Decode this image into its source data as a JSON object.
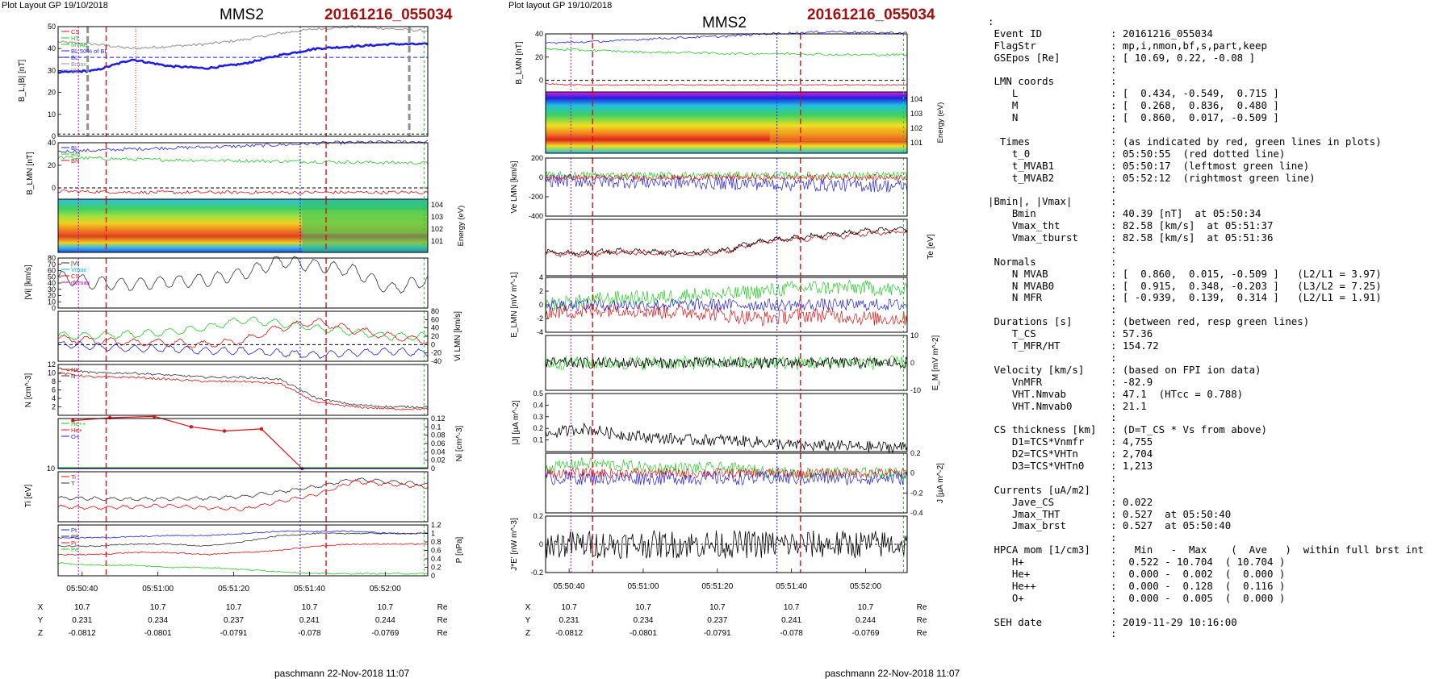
{
  "left_figure": {
    "header": "Plot Layout GP 19/10/2018",
    "spacecraft": "MMS2",
    "event": "20161216_055034",
    "footer": "paschmann 22-Nov-2018 11:07"
  },
  "right_figure": {
    "header": "Plot layout GP 19/10/2018",
    "spacecraft": "MMS2",
    "event": "20161216_055034",
    "footer": "paschmann 22-Nov-2018 11:07"
  },
  "time_ticks": [
    "05:50:40",
    "05:51:00",
    "05:51:20",
    "05:51:40",
    "05:52:00"
  ],
  "position_table": {
    "rows": [
      {
        "label": "X",
        "values": [
          "10.7",
          "10.7",
          "10.7",
          "10.7",
          "10.7"
        ],
        "unit": "Re"
      },
      {
        "label": "Y",
        "values": [
          "0.231",
          "0.234",
          "0.237",
          "0.241",
          "0.244"
        ],
        "unit": "Re"
      },
      {
        "label": "Z",
        "values": [
          "-0.0812",
          "-0.0801",
          "-0.0791",
          "-0.078",
          "-0.0769"
        ],
        "unit": "Re"
      }
    ]
  },
  "colors": {
    "blue": "#1f1fe0",
    "green": "#22cc22",
    "red": "#e01010",
    "black": "#000000",
    "gray": "#909090",
    "magenta": "#c000c0",
    "cyan": "#00b0e0",
    "event": "#a01010"
  },
  "chart_data": [
    {
      "type": "line",
      "figure": "left",
      "panel": "B",
      "ylabel": "B_L,|B| [nT]",
      "ylim": [
        0,
        50
      ],
      "yticks": [
        0,
        10,
        20,
        30,
        40,
        50
      ],
      "legend": [
        "CS",
        "HT",
        "MVAB",
        "BL 50% of BL",
        "BL",
        "Bmax",
        "|B|"
      ],
      "series": [
        {
          "name": "|B|",
          "color": "gray",
          "x": [
            0,
            0.1,
            0.2,
            0.3,
            0.4,
            0.5,
            0.6,
            0.7,
            0.8,
            0.9,
            1
          ],
          "y": [
            43,
            42,
            40,
            41,
            42,
            44,
            47,
            49,
            50,
            49,
            48
          ]
        },
        {
          "name": "BL",
          "color": "blue",
          "x": [
            0,
            0.1,
            0.2,
            0.3,
            0.4,
            0.5,
            0.6,
            0.7,
            0.8,
            0.9,
            1
          ],
          "y": [
            29,
            30,
            35,
            32,
            31,
            33,
            37,
            40,
            41,
            42,
            42
          ]
        }
      ]
    },
    {
      "type": "line",
      "figure": "left",
      "panel": "BLMN",
      "ylabel": "B_LMN [nT]",
      "ylim": [
        -10,
        40
      ],
      "yticks": [
        0,
        20,
        40
      ],
      "legend": [
        "BL",
        "BM",
        "BN"
      ],
      "series": [
        {
          "name": "BL",
          "color": "blue",
          "x": [
            0,
            0.25,
            0.5,
            0.75,
            1
          ],
          "y": [
            32,
            35,
            37,
            40,
            41
          ]
        },
        {
          "name": "BM",
          "color": "green",
          "x": [
            0,
            0.25,
            0.5,
            0.75,
            1
          ],
          "y": [
            27,
            25,
            24,
            23,
            22
          ]
        },
        {
          "name": "BN",
          "color": "red",
          "x": [
            0,
            0.25,
            0.5,
            0.75,
            1
          ],
          "y": [
            -3,
            -4,
            -4,
            -4,
            -4
          ]
        }
      ]
    },
    {
      "type": "heatmap",
      "figure": "left",
      "panel": "ion-spectrogram",
      "ylabel": "Energy (eV)",
      "yticks": [
        "10^1",
        "10^2",
        "10^3",
        "10^4"
      ]
    },
    {
      "type": "line",
      "figure": "left",
      "panel": "Vi",
      "ylabel": "|Vi| [km/s]",
      "ylim": [
        0,
        80
      ],
      "yticks": [
        0,
        10,
        20,
        30,
        40,
        50,
        60,
        70,
        80
      ],
      "legend": [
        "|Vi|",
        "Vmax",
        "CS",
        "dVmax"
      ]
    },
    {
      "type": "line",
      "figure": "left",
      "panel": "ViLMN",
      "ylabel": "Vi LMN [km/s]",
      "ylim": [
        -40,
        80
      ],
      "yticks": [
        -40,
        -20,
        0,
        20,
        40,
        60,
        80
      ],
      "legend": [
        "VL",
        "VM",
        "VN"
      ]
    },
    {
      "type": "line",
      "figure": "left",
      "panel": "N",
      "ylabel": "N [cm^-3]",
      "ylim": [
        0,
        12
      ],
      "yticks": [
        2,
        4,
        6,
        8,
        10,
        12
      ],
      "legend": [
        "Ne",
        "N"
      ]
    },
    {
      "type": "line",
      "figure": "left",
      "panel": "HPCA",
      "ylabel": "Ni [cm^-3]",
      "ylim": [
        0,
        0.12
      ],
      "yticks": [
        0,
        0.02,
        0.04,
        0.06,
        0.08,
        0.1,
        0.12
      ],
      "legend": [
        "He++",
        "He+",
        "O+"
      ],
      "series": [
        {
          "name": "He++",
          "color": "red",
          "x": [
            0.04,
            0.14,
            0.26,
            0.36,
            0.45,
            0.55,
            0.66
          ],
          "y": [
            0.115,
            0.122,
            0.125,
            0.1,
            0.09,
            0.095,
            0.0
          ]
        }
      ]
    },
    {
      "type": "line",
      "figure": "left",
      "panel": "Ti",
      "ylabel": "Ti [eV]",
      "legend": [
        "Ti",
        "T"
      ]
    },
    {
      "type": "line",
      "figure": "left",
      "panel": "P",
      "ylabel": "P [nPa]",
      "ylim": [
        0,
        1.2
      ],
      "yticks": [
        0,
        0.2,
        0.4,
        0.6,
        0.8,
        1.0,
        1.2
      ],
      "legend": [
        "Pt",
        "PB",
        "Pi",
        "Pe"
      ]
    },
    {
      "type": "line",
      "figure": "right",
      "panel": "BLMN",
      "ylabel": "B_LMN [nT]",
      "ylim": [
        -10,
        40
      ],
      "yticks": [
        0,
        20,
        40
      ],
      "legend": [
        "BL",
        "BM",
        "BN"
      ]
    },
    {
      "type": "heatmap",
      "figure": "right",
      "panel": "electron-spectrogram",
      "ylabel": "Energy (eV)",
      "yticks": [
        "10^1",
        "10^2",
        "10^3",
        "10^4"
      ]
    },
    {
      "type": "line",
      "figure": "right",
      "panel": "VeLMN",
      "ylabel": "Ve LMN [km/s]",
      "ylim": [
        -400,
        200
      ],
      "yticks": [
        -400,
        -200,
        0,
        200
      ],
      "legend": [
        "VL",
        "VM",
        "VN"
      ]
    },
    {
      "type": "line",
      "figure": "right",
      "panel": "Te",
      "ylabel": "Te [eV]",
      "legend": [
        "T",
        "Tpar"
      ]
    },
    {
      "type": "line",
      "figure": "right",
      "panel": "ELMN",
      "ylabel": "E_LMN [mV m^-1]",
      "ylim": [
        -4,
        4
      ],
      "yticks": [
        -4,
        -2,
        0,
        2,
        4
      ],
      "legend": [
        "EL",
        "EM",
        "EN"
      ]
    },
    {
      "type": "line",
      "figure": "right",
      "panel": "EM",
      "ylabel": "E_M [mV m^-2]",
      "ylim": [
        -10,
        10
      ],
      "yticks": [
        -10,
        0,
        10
      ],
      "legend": [
        "-VexB",
        "E"
      ]
    },
    {
      "type": "line",
      "figure": "right",
      "panel": "J",
      "ylabel": "|J| [µA m^-2]",
      "ylim": [
        0,
        0.5
      ],
      "yticks": [
        0.1,
        0.2,
        0.3,
        0.4,
        0.5
      ],
      "legend": [
        "|J|"
      ]
    },
    {
      "type": "line",
      "figure": "right",
      "panel": "JLMN",
      "ylabel": "J [µA m^-2]",
      "ylim": [
        -0.4,
        0.2
      ],
      "yticks": [
        -0.4,
        -0.2,
        0.0,
        0.2
      ],
      "legend": [
        "Jmax"
      ]
    },
    {
      "type": "line",
      "figure": "right",
      "panel": "JE",
      "ylabel": "J*E' [nW m^-3]",
      "ylim": [
        -0.2,
        0.2
      ],
      "yticks": [
        -0.2,
        0.0,
        0.2
      ],
      "legend": [
        "J*E'"
      ]
    }
  ],
  "info_lines": [
    {
      "k": ":",
      "v": ""
    },
    {
      "k": " Event ID",
      "v": ": 20161216_055034"
    },
    {
      "k": " FlagStr",
      "v": ": mp,i,nmon,bf,s,part,keep"
    },
    {
      "k": " GSEpos [Re]",
      "v": ": [ 10.69, 0.22, -0.08 ]"
    },
    {
      "k": "",
      "v": ":"
    },
    {
      "k": " LMN coords",
      "v": ":"
    },
    {
      "k": "    L",
      "v": ": [  0.434, -0.549,  0.715 ]"
    },
    {
      "k": "    M",
      "v": ": [  0.268,  0.836,  0.480 ]"
    },
    {
      "k": "    N",
      "v": ": [  0.860,  0.017, -0.509 ]"
    },
    {
      "k": "",
      "v": ":"
    },
    {
      "k": "  Times",
      "v": ": (as indicated by red, green lines in plots)"
    },
    {
      "k": "    t_0",
      "v": ": 05:50:55  (red dotted line)"
    },
    {
      "k": "    t_MVAB1",
      "v": ": 05:50:17  (leftmost green line)"
    },
    {
      "k": "    t_MVAB2",
      "v": ": 05:52:12  (rightmost green line)"
    },
    {
      "k": "",
      "v": ":"
    },
    {
      "k": "|Bmin|, |Vmax|",
      "v": ":"
    },
    {
      "k": "    Bmin",
      "v": ": 40.39 [nT]  at 05:50:34"
    },
    {
      "k": "    Vmax_tht",
      "v": ": 82.58 [km/s]  at 05:51:37"
    },
    {
      "k": "    Vmax_tburst",
      "v": ": 82.58 [km/s]  at 05:51:36"
    },
    {
      "k": "",
      "v": ":"
    },
    {
      "k": " Normals",
      "v": ":"
    },
    {
      "k": "    N MVAB",
      "v": ": [  0.860,  0.015, -0.509 ]   (L2/L1 = 3.97)"
    },
    {
      "k": "    N MVAB0",
      "v": ": [  0.915,  0.348, -0.203 ]   (L3/L2 = 7.25)"
    },
    {
      "k": "    N MFR",
      "v": ": [ -0.939,  0.139,  0.314 ]   (L2/L1 = 1.91)"
    },
    {
      "k": "",
      "v": ":"
    },
    {
      "k": " Durations [s]",
      "v": ": (between red, resp green lines)"
    },
    {
      "k": "    T_CS",
      "v": ": 57.36"
    },
    {
      "k": "    T_MFR/HT",
      "v": ": 154.72"
    },
    {
      "k": "",
      "v": ":"
    },
    {
      "k": " Velocity [km/s]",
      "v": ": (based on FPI ion data)"
    },
    {
      "k": "    VnMFR",
      "v": ": -82.9"
    },
    {
      "k": "    VHT.Nmvab",
      "v": ": 47.1  (HTcc = 0.788)"
    },
    {
      "k": "    VHT.Nmvab0",
      "v": ": 21.1"
    },
    {
      "k": "",
      "v": ":"
    },
    {
      "k": " CS thickness [km]",
      "v": ": (D=T_CS * Vs from above)"
    },
    {
      "k": "    D1=TCS*Vnmfr",
      "v": ": 4,755"
    },
    {
      "k": "    D2=TCS*VHTn",
      "v": ": 2,704"
    },
    {
      "k": "    D3=TCS*VHTn0",
      "v": ": 1,213"
    },
    {
      "k": "",
      "v": ":"
    },
    {
      "k": " Currents [uA/m2]",
      "v": ":"
    },
    {
      "k": "    Jave_CS",
      "v": ": 0.022"
    },
    {
      "k": "    Jmax_THT",
      "v": ": 0.527  at 05:50:40"
    },
    {
      "k": "    Jmax_brst",
      "v": ": 0.527  at 05:50:40"
    },
    {
      "k": "",
      "v": ":"
    },
    {
      "k": " HPCA mom [1/cm3]",
      "v": ":   Min   -  Max    (  Ave   )  within full brst int"
    },
    {
      "k": "    H+",
      "v": ":  0.522 - 10.704  ( 10.704 )"
    },
    {
      "k": "    He+",
      "v": ":  0.000 -  0.002  (  0.000 )"
    },
    {
      "k": "    He++",
      "v": ":  0.000 -  0.128  (  0.116 )"
    },
    {
      "k": "    O+",
      "v": ":  0.000 -  0.005  (  0.000 )"
    },
    {
      "k": "",
      "v": ":"
    },
    {
      "k": " SEH date",
      "v": ": 2019-11-29 10:16:00"
    },
    {
      "k": "",
      "v": ":"
    }
  ]
}
